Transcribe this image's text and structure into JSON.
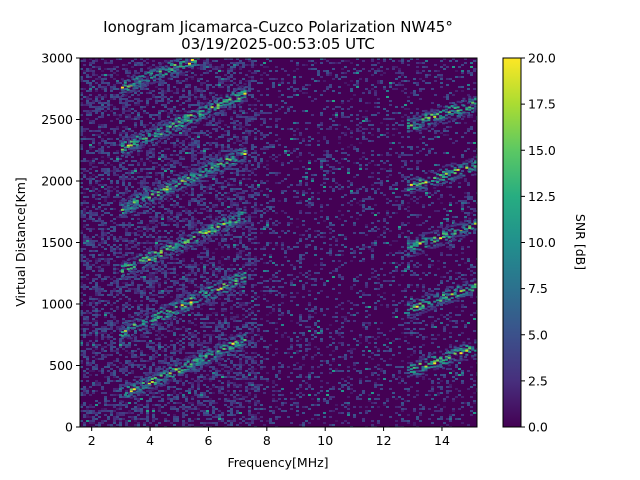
{
  "chart_data": {
    "type": "heatmap",
    "title": "Ionogram Jicamarca-Cuzco Polarization NW45°",
    "subtitle": "03/19/2025-00:53:05 UTC",
    "xlabel": "Frequency[MHz]",
    "ylabel": "Virtual Distance[Km]",
    "xlim": [
      1.6,
      15.2
    ],
    "ylim": [
      0,
      3000
    ],
    "x_ticks": [
      2,
      4,
      6,
      8,
      10,
      12,
      14
    ],
    "y_ticks": [
      0,
      500,
      1000,
      1500,
      2000,
      2500,
      3000
    ],
    "colorbar": {
      "label": "SNR [dB]",
      "range": [
        0,
        20
      ],
      "ticks": [
        "0.0",
        "2.5",
        "5.0",
        "7.5",
        "10.0",
        "12.5",
        "15.0",
        "17.5",
        "20.0"
      ],
      "colormap": "viridis"
    },
    "traces": [
      {
        "x_start": 3.0,
        "x_end": 7.2,
        "y_start": 270,
        "y_end": 720
      },
      {
        "x_start": 3.0,
        "x_end": 7.2,
        "y_start": 770,
        "y_end": 1230
      },
      {
        "x_start": 3.0,
        "x_end": 7.2,
        "y_start": 1280,
        "y_end": 1730
      },
      {
        "x_start": 3.0,
        "x_end": 7.2,
        "y_start": 1780,
        "y_end": 2230
      },
      {
        "x_start": 3.0,
        "x_end": 7.2,
        "y_start": 2270,
        "y_end": 2720
      },
      {
        "x_start": 3.0,
        "x_end": 5.6,
        "y_start": 2770,
        "y_end": 3000
      },
      {
        "x_start": 12.8,
        "x_end": 15.2,
        "y_start": 2460,
        "y_end": 2640
      },
      {
        "x_start": 12.8,
        "x_end": 15.2,
        "y_start": 1960,
        "y_end": 2140
      },
      {
        "x_start": 12.8,
        "x_end": 15.2,
        "y_start": 1460,
        "y_end": 1660
      },
      {
        "x_start": 12.8,
        "x_end": 15.2,
        "y_start": 960,
        "y_end": 1160
      },
      {
        "x_start": 12.8,
        "x_end": 15.2,
        "y_start": 460,
        "y_end": 660
      }
    ]
  }
}
